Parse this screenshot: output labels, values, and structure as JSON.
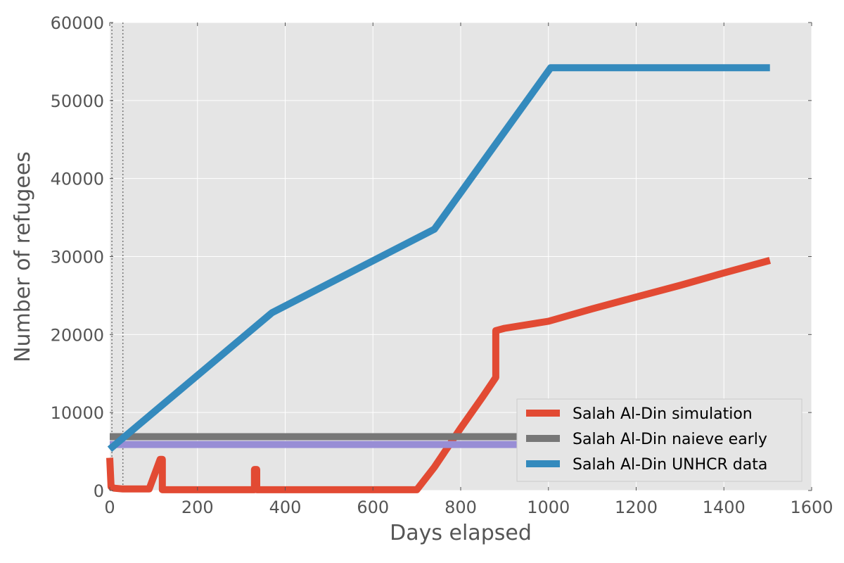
{
  "chart_data": {
    "type": "line",
    "xlabel": "Days elapsed",
    "ylabel": "Number of refugees",
    "xlim": [
      0,
      1600
    ],
    "ylim": [
      0,
      60000
    ],
    "xticks": [
      "0",
      "200",
      "400",
      "600",
      "800",
      "1000",
      "1200",
      "1400",
      "1600"
    ],
    "yticks": [
      "0",
      "10000",
      "20000",
      "30000",
      "40000",
      "50000",
      "60000"
    ],
    "grid": true,
    "legend_position": "bottom-right",
    "vertical_reference_lines": [
      5,
      30
    ],
    "series": [
      {
        "name": "Salah Al-Din simulation",
        "color": "#e24a33",
        "points": [
          [
            0,
            4200
          ],
          [
            3,
            500
          ],
          [
            10,
            300
          ],
          [
            30,
            200
          ],
          [
            90,
            200
          ],
          [
            115,
            4000
          ],
          [
            120,
            4000
          ],
          [
            120,
            100
          ],
          [
            330,
            100
          ],
          [
            330,
            2700
          ],
          [
            335,
            2700
          ],
          [
            335,
            100
          ],
          [
            700,
            100
          ],
          [
            740,
            3000
          ],
          [
            800,
            8000
          ],
          [
            850,
            12000
          ],
          [
            880,
            14500
          ],
          [
            880,
            20500
          ],
          [
            900,
            20800
          ],
          [
            1000,
            21700
          ],
          [
            1100,
            23300
          ],
          [
            1200,
            24800
          ],
          [
            1300,
            26300
          ],
          [
            1400,
            27900
          ],
          [
            1505,
            29500
          ]
        ]
      },
      {
        "name": "Salah Al-Din naieve early",
        "color": "#777777",
        "points": [
          [
            0,
            6900
          ],
          [
            1505,
            6900
          ]
        ]
      },
      {
        "name": "",
        "color": "#988ed5",
        "points": [
          [
            0,
            5900
          ],
          [
            1505,
            5900
          ]
        ]
      },
      {
        "name": "Salah Al-Din UNHCR data",
        "color": "#348abd",
        "points": [
          [
            0,
            5300
          ],
          [
            370,
            22800
          ],
          [
            740,
            33500
          ],
          [
            1005,
            54200
          ],
          [
            1505,
            54200
          ]
        ]
      }
    ],
    "legend": [
      {
        "label": "Salah Al-Din simulation",
        "color": "#e24a33"
      },
      {
        "label": "Salah Al-Din naieve early",
        "color": "#777777"
      },
      {
        "label": "Salah Al-Din UNHCR data",
        "color": "#348abd"
      }
    ]
  }
}
